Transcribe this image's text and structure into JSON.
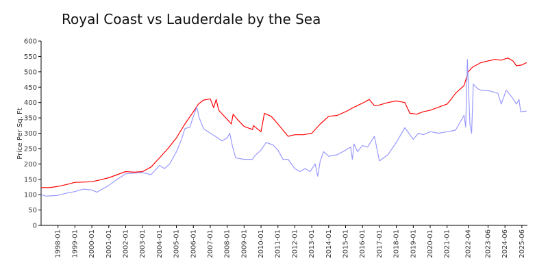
{
  "chart_data": {
    "type": "line",
    "title": "Royal Coast vs Lauderdale by the Sea",
    "xlabel": "",
    "ylabel": "Price Per Sq. Ft",
    "ylim": [
      0,
      600
    ],
    "yticks": [
      0,
      50,
      100,
      150,
      200,
      250,
      300,
      350,
      400,
      450,
      500,
      550,
      600
    ],
    "xlim": [
      1997.0,
      2025.75
    ],
    "xticks": [
      {
        "x": 1998.0,
        "label": "1998-01"
      },
      {
        "x": 1999.0,
        "label": "1999-01"
      },
      {
        "x": 2000.0,
        "label": "2000-01"
      },
      {
        "x": 2001.0,
        "label": "2001-01"
      },
      {
        "x": 2002.0,
        "label": "2002-01"
      },
      {
        "x": 2003.0,
        "label": "2003-01"
      },
      {
        "x": 2004.0,
        "label": "2004-01"
      },
      {
        "x": 2005.0,
        "label": "2005-01"
      },
      {
        "x": 2006.0,
        "label": "2006-01"
      },
      {
        "x": 2007.0,
        "label": "2007-01"
      },
      {
        "x": 2008.0,
        "label": "2008-01"
      },
      {
        "x": 2009.0,
        "label": "2009-01"
      },
      {
        "x": 2010.0,
        "label": "2010-01"
      },
      {
        "x": 2011.0,
        "label": "2011-01"
      },
      {
        "x": 2012.0,
        "label": "2012-01"
      },
      {
        "x": 2013.0,
        "label": "2013-01"
      },
      {
        "x": 2014.0,
        "label": "2014-01"
      },
      {
        "x": 2015.0,
        "label": "2015-01"
      },
      {
        "x": 2016.0,
        "label": "2016-01"
      },
      {
        "x": 2017.0,
        "label": "2017-01"
      },
      {
        "x": 2018.0,
        "label": "2018-01"
      },
      {
        "x": 2019.0,
        "label": "2019-01"
      },
      {
        "x": 2020.0,
        "label": "2020-01"
      },
      {
        "x": 2021.0,
        "label": "2021-01"
      },
      {
        "x": 2022.25,
        "label": "2022-04"
      },
      {
        "x": 2023.42,
        "label": "2023-06"
      },
      {
        "x": 2024.42,
        "label": "2024-06"
      },
      {
        "x": 2025.42,
        "label": "2025-06"
      }
    ],
    "series": [
      {
        "name": "Royal Coast",
        "color": "#ff0000",
        "points": [
          [
            1997.0,
            123
          ],
          [
            1997.5,
            123
          ],
          [
            1998.0,
            127
          ],
          [
            1998.5,
            133
          ],
          [
            1999.0,
            140
          ],
          [
            1999.5,
            141
          ],
          [
            2000.0,
            142
          ],
          [
            2000.5,
            148
          ],
          [
            2001.0,
            155
          ],
          [
            2001.5,
            165
          ],
          [
            2002.0,
            175
          ],
          [
            2002.5,
            173
          ],
          [
            2003.0,
            175
          ],
          [
            2003.5,
            190
          ],
          [
            2004.0,
            220
          ],
          [
            2004.5,
            250
          ],
          [
            2005.0,
            285
          ],
          [
            2005.5,
            330
          ],
          [
            2006.0,
            370
          ],
          [
            2006.3,
            395
          ],
          [
            2006.6,
            408
          ],
          [
            2007.0,
            412
          ],
          [
            2007.2,
            383
          ],
          [
            2007.35,
            410
          ],
          [
            2007.5,
            375
          ],
          [
            2008.0,
            345
          ],
          [
            2008.25,
            330
          ],
          [
            2008.35,
            362
          ],
          [
            2008.6,
            345
          ],
          [
            2009.0,
            322
          ],
          [
            2009.2,
            318
          ],
          [
            2009.5,
            312
          ],
          [
            2009.55,
            325
          ],
          [
            2010.0,
            305
          ],
          [
            2010.2,
            365
          ],
          [
            2010.6,
            355
          ],
          [
            2011.0,
            330
          ],
          [
            2011.3,
            310
          ],
          [
            2011.6,
            290
          ],
          [
            2012.0,
            295
          ],
          [
            2012.5,
            295
          ],
          [
            2013.0,
            300
          ],
          [
            2013.5,
            330
          ],
          [
            2014.0,
            355
          ],
          [
            2014.5,
            358
          ],
          [
            2015.0,
            370
          ],
          [
            2015.5,
            385
          ],
          [
            2016.0,
            398
          ],
          [
            2016.4,
            410
          ],
          [
            2016.7,
            390
          ],
          [
            2017.0,
            392
          ],
          [
            2017.5,
            400
          ],
          [
            2018.0,
            405
          ],
          [
            2018.5,
            400
          ],
          [
            2018.8,
            365
          ],
          [
            2019.2,
            362
          ],
          [
            2019.6,
            370
          ],
          [
            2020.0,
            375
          ],
          [
            2020.5,
            385
          ],
          [
            2021.0,
            395
          ],
          [
            2021.2,
            408
          ],
          [
            2021.5,
            430
          ],
          [
            2022.0,
            455
          ],
          [
            2022.25,
            500
          ],
          [
            2022.5,
            515
          ],
          [
            2023.0,
            530
          ],
          [
            2023.4,
            535
          ],
          [
            2023.8,
            540
          ],
          [
            2024.2,
            538
          ],
          [
            2024.6,
            545
          ],
          [
            2024.9,
            535
          ],
          [
            2025.1,
            520
          ],
          [
            2025.4,
            522
          ],
          [
            2025.7,
            530
          ]
        ]
      },
      {
        "name": "Lauderdale by the Sea",
        "color": "#9999ff",
        "points": [
          [
            1997.0,
            100
          ],
          [
            1997.3,
            95
          ],
          [
            1998.0,
            98
          ],
          [
            1998.5,
            105
          ],
          [
            1999.0,
            110
          ],
          [
            1999.5,
            118
          ],
          [
            2000.0,
            115
          ],
          [
            2000.3,
            108
          ],
          [
            2001.0,
            130
          ],
          [
            2001.5,
            150
          ],
          [
            2002.0,
            168
          ],
          [
            2002.5,
            170
          ],
          [
            2003.0,
            172
          ],
          [
            2003.5,
            165
          ],
          [
            2004.0,
            195
          ],
          [
            2004.3,
            185
          ],
          [
            2004.6,
            200
          ],
          [
            2005.0,
            240
          ],
          [
            2005.3,
            280
          ],
          [
            2005.5,
            315
          ],
          [
            2005.8,
            320
          ],
          [
            2006.0,
            355
          ],
          [
            2006.2,
            385
          ],
          [
            2006.35,
            350
          ],
          [
            2006.6,
            315
          ],
          [
            2007.0,
            300
          ],
          [
            2007.3,
            290
          ],
          [
            2007.7,
            275
          ],
          [
            2008.0,
            285
          ],
          [
            2008.15,
            300
          ],
          [
            2008.3,
            260
          ],
          [
            2008.5,
            220
          ],
          [
            2008.7,
            218
          ],
          [
            2009.0,
            215
          ],
          [
            2009.5,
            215
          ],
          [
            2009.6,
            225
          ],
          [
            2010.0,
            245
          ],
          [
            2010.3,
            270
          ],
          [
            2010.7,
            262
          ],
          [
            2011.0,
            245
          ],
          [
            2011.3,
            215
          ],
          [
            2011.6,
            215
          ],
          [
            2012.0,
            185
          ],
          [
            2012.3,
            175
          ],
          [
            2012.6,
            185
          ],
          [
            2012.9,
            175
          ],
          [
            2013.2,
            200
          ],
          [
            2013.35,
            160
          ],
          [
            2013.5,
            210
          ],
          [
            2013.7,
            240
          ],
          [
            2014.0,
            225
          ],
          [
            2014.5,
            230
          ],
          [
            2015.0,
            245
          ],
          [
            2015.3,
            255
          ],
          [
            2015.4,
            215
          ],
          [
            2015.5,
            265
          ],
          [
            2015.7,
            240
          ],
          [
            2016.0,
            260
          ],
          [
            2016.3,
            255
          ],
          [
            2016.7,
            290
          ],
          [
            2017.0,
            210
          ],
          [
            2017.5,
            230
          ],
          [
            2018.0,
            270
          ],
          [
            2018.5,
            318
          ],
          [
            2019.0,
            280
          ],
          [
            2019.3,
            300
          ],
          [
            2019.6,
            295
          ],
          [
            2020.0,
            305
          ],
          [
            2020.5,
            300
          ],
          [
            2021.0,
            305
          ],
          [
            2021.5,
            310
          ],
          [
            2022.0,
            358
          ],
          [
            2022.1,
            320
          ],
          [
            2022.2,
            540
          ],
          [
            2022.35,
            330
          ],
          [
            2022.45,
            300
          ],
          [
            2022.55,
            460
          ],
          [
            2022.8,
            445
          ],
          [
            2023.0,
            440
          ],
          [
            2023.5,
            438
          ],
          [
            2024.0,
            430
          ],
          [
            2024.2,
            395
          ],
          [
            2024.5,
            440
          ],
          [
            2024.8,
            420
          ],
          [
            2025.1,
            395
          ],
          [
            2025.25,
            410
          ],
          [
            2025.35,
            370
          ],
          [
            2025.7,
            372
          ]
        ]
      }
    ]
  }
}
